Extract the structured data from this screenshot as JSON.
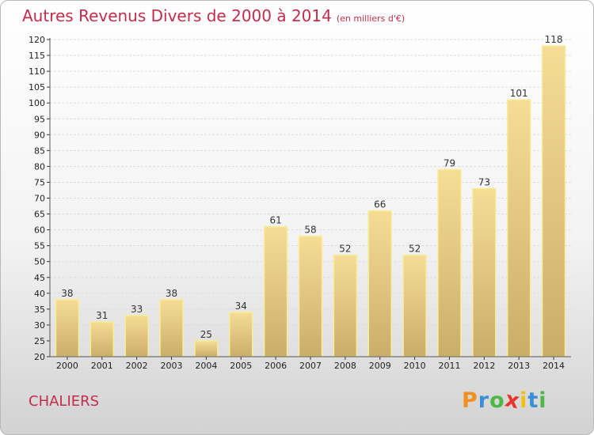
{
  "title": "Autres Revenus Divers de 2000 à 2014",
  "unit": "(en milliers d'€)",
  "commune": "CHALIERS",
  "brand": {
    "letters": [
      "P",
      "r",
      "o",
      "x",
      "i",
      "t",
      "i"
    ],
    "colors": [
      "#f19020",
      "#3a8fd6",
      "#4db848",
      "#e8352f",
      "#f2c012",
      "#3a8fd6",
      "#4db848"
    ]
  },
  "colors": {
    "title": "#c42c4c",
    "bar_top": "#f6dd96",
    "bar_bottom": "#c9ae6a",
    "bar_outline": "#f9ec99",
    "grid": "#dcdcdc",
    "axis_text": "#222222"
  },
  "chart_data": {
    "type": "bar",
    "title": "Autres Revenus Divers de 2000 à 2014",
    "xlabel": "",
    "ylabel": "",
    "categories": [
      "2000",
      "2001",
      "2002",
      "2003",
      "2004",
      "2005",
      "2006",
      "2007",
      "2008",
      "2009",
      "2010",
      "2011",
      "2012",
      "2013",
      "2014"
    ],
    "values": [
      38,
      31,
      33,
      38,
      25,
      34,
      61,
      58,
      52,
      66,
      52,
      79,
      73,
      101,
      118
    ],
    "ylim": [
      20,
      120
    ],
    "yticks": [
      20,
      25,
      30,
      35,
      40,
      45,
      50,
      55,
      60,
      65,
      70,
      75,
      80,
      85,
      90,
      95,
      100,
      105,
      110,
      115,
      120
    ],
    "grid": true,
    "legend": "none"
  }
}
